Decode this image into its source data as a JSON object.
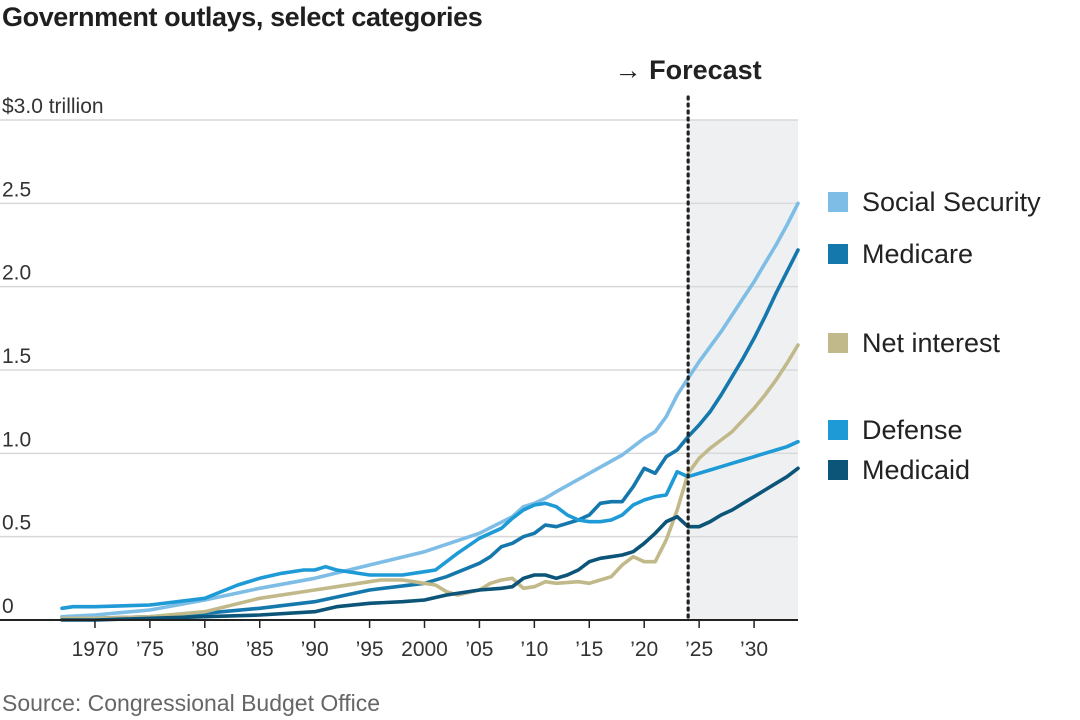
{
  "title": "Government outlays, select categories",
  "source": "Source: Congressional Budget Office",
  "chart_data": {
    "type": "line",
    "title": "Government outlays, select categories",
    "y_unit_label": "$3.0 trillion",
    "ylim": [
      0,
      3.0
    ],
    "xlim": [
      1967,
      2034
    ],
    "y_ticks": [
      {
        "value": 0,
        "label": "0"
      },
      {
        "value": 0.5,
        "label": "0.5"
      },
      {
        "value": 1.0,
        "label": "1.0"
      },
      {
        "value": 1.5,
        "label": "1.5"
      },
      {
        "value": 2.0,
        "label": "2.0"
      },
      {
        "value": 2.5,
        "label": "2.5"
      },
      {
        "value": 3.0,
        "label": "$3.0 trillion"
      }
    ],
    "x_ticks": [
      {
        "value": 1970,
        "label": "1970"
      },
      {
        "value": 1975,
        "label": "’75"
      },
      {
        "value": 1980,
        "label": "’80"
      },
      {
        "value": 1985,
        "label": "’85"
      },
      {
        "value": 1990,
        "label": "’90"
      },
      {
        "value": 1995,
        "label": "’95"
      },
      {
        "value": 2000,
        "label": "2000"
      },
      {
        "value": 2005,
        "label": "’05"
      },
      {
        "value": 2010,
        "label": "’10"
      },
      {
        "value": 2015,
        "label": "’15"
      },
      {
        "value": 2020,
        "label": "’20"
      },
      {
        "value": 2025,
        "label": "’25"
      },
      {
        "value": 2030,
        "label": "’30"
      }
    ],
    "forecast": {
      "label": "→ Forecast",
      "start_year": 2024,
      "end_year": 2034
    },
    "grid": true,
    "legend_position": "right",
    "series": [
      {
        "name": "Social Security",
        "color": "#7dbde6",
        "x": [
          1967,
          1970,
          1975,
          1980,
          1985,
          1990,
          1995,
          2000,
          2005,
          2008,
          2009,
          2010,
          2011,
          2012,
          2015,
          2018,
          2019,
          2020,
          2021,
          2022,
          2023,
          2024,
          2025,
          2026,
          2027,
          2028,
          2029,
          2030,
          2031,
          2032,
          2033,
          2034
        ],
        "y": [
          0.02,
          0.03,
          0.06,
          0.12,
          0.19,
          0.25,
          0.33,
          0.41,
          0.52,
          0.62,
          0.68,
          0.7,
          0.73,
          0.77,
          0.88,
          0.99,
          1.04,
          1.09,
          1.13,
          1.22,
          1.35,
          1.45,
          1.55,
          1.64,
          1.73,
          1.83,
          1.93,
          2.03,
          2.14,
          2.25,
          2.37,
          2.5
        ]
      },
      {
        "name": "Medicare",
        "color": "#1578ad",
        "x": [
          1967,
          1970,
          1975,
          1980,
          1985,
          1990,
          1995,
          2000,
          2002,
          2005,
          2006,
          2007,
          2008,
          2009,
          2010,
          2011,
          2012,
          2014,
          2015,
          2016,
          2017,
          2018,
          2019,
          2020,
          2021,
          2022,
          2023,
          2024,
          2025,
          2026,
          2027,
          2028,
          2029,
          2030,
          2031,
          2032,
          2033,
          2034
        ],
        "y": [
          0.01,
          0.01,
          0.02,
          0.04,
          0.07,
          0.11,
          0.18,
          0.22,
          0.26,
          0.34,
          0.38,
          0.44,
          0.46,
          0.5,
          0.52,
          0.57,
          0.56,
          0.6,
          0.63,
          0.7,
          0.71,
          0.71,
          0.8,
          0.91,
          0.88,
          0.98,
          1.02,
          1.1,
          1.17,
          1.25,
          1.35,
          1.46,
          1.57,
          1.69,
          1.82,
          1.96,
          2.09,
          2.22
        ]
      },
      {
        "name": "Net interest",
        "color": "#c2b98a",
        "x": [
          1967,
          1970,
          1975,
          1980,
          1985,
          1990,
          1992,
          1995,
          1996,
          1997,
          1998,
          1999,
          2000,
          2001,
          2002,
          2003,
          2005,
          2006,
          2007,
          2008,
          2009,
          2010,
          2011,
          2012,
          2014,
          2015,
          2016,
          2017,
          2018,
          2019,
          2020,
          2021,
          2022,
          2023,
          2024,
          2025,
          2026,
          2027,
          2028,
          2029,
          2030,
          2031,
          2032,
          2033,
          2034
        ],
        "y": [
          0.01,
          0.01,
          0.02,
          0.05,
          0.13,
          0.18,
          0.2,
          0.23,
          0.24,
          0.24,
          0.24,
          0.23,
          0.22,
          0.21,
          0.17,
          0.15,
          0.18,
          0.22,
          0.24,
          0.25,
          0.19,
          0.2,
          0.23,
          0.22,
          0.23,
          0.22,
          0.24,
          0.26,
          0.33,
          0.38,
          0.35,
          0.35,
          0.48,
          0.66,
          0.88,
          0.97,
          1.03,
          1.08,
          1.13,
          1.2,
          1.27,
          1.35,
          1.44,
          1.54,
          1.65
        ]
      },
      {
        "name": "Defense",
        "color": "#1e9ad6",
        "x": [
          1967,
          1968,
          1970,
          1975,
          1980,
          1983,
          1985,
          1987,
          1989,
          1990,
          1991,
          1992,
          1995,
          1998,
          2000,
          2001,
          2003,
          2005,
          2006,
          2007,
          2008,
          2009,
          2010,
          2011,
          2012,
          2013,
          2014,
          2015,
          2016,
          2017,
          2018,
          2019,
          2020,
          2021,
          2022,
          2023,
          2024,
          2025,
          2026,
          2027,
          2028,
          2029,
          2030,
          2031,
          2032,
          2033,
          2034
        ],
        "y": [
          0.07,
          0.08,
          0.08,
          0.09,
          0.13,
          0.21,
          0.25,
          0.28,
          0.3,
          0.3,
          0.32,
          0.3,
          0.27,
          0.27,
          0.29,
          0.3,
          0.4,
          0.49,
          0.52,
          0.55,
          0.61,
          0.66,
          0.69,
          0.7,
          0.68,
          0.63,
          0.6,
          0.59,
          0.59,
          0.6,
          0.63,
          0.69,
          0.72,
          0.74,
          0.75,
          0.89,
          0.86,
          0.88,
          0.9,
          0.92,
          0.94,
          0.96,
          0.98,
          1.0,
          1.02,
          1.04,
          1.07
        ]
      },
      {
        "name": "Medicaid",
        "color": "#0c5578",
        "x": [
          1967,
          1970,
          1975,
          1980,
          1985,
          1990,
          1992,
          1995,
          1998,
          2000,
          2002,
          2005,
          2007,
          2008,
          2009,
          2010,
          2011,
          2012,
          2013,
          2014,
          2015,
          2016,
          2017,
          2018,
          2019,
          2020,
          2021,
          2022,
          2023,
          2024,
          2025,
          2026,
          2027,
          2028,
          2029,
          2030,
          2031,
          2032,
          2033,
          2034
        ],
        "y": [
          0.0,
          0.0,
          0.01,
          0.02,
          0.03,
          0.05,
          0.08,
          0.1,
          0.11,
          0.12,
          0.15,
          0.18,
          0.19,
          0.2,
          0.25,
          0.27,
          0.27,
          0.25,
          0.27,
          0.3,
          0.35,
          0.37,
          0.38,
          0.39,
          0.41,
          0.46,
          0.52,
          0.59,
          0.62,
          0.56,
          0.56,
          0.59,
          0.63,
          0.66,
          0.7,
          0.74,
          0.78,
          0.82,
          0.86,
          0.91
        ]
      }
    ],
    "legend": [
      {
        "name": "Social Security",
        "color": "#7dbde6"
      },
      {
        "name": "Medicare",
        "color": "#1578ad"
      },
      {
        "name": "Net interest",
        "color": "#c2b98a"
      },
      {
        "name": "Defense",
        "color": "#1e9ad6"
      },
      {
        "name": "Medicaid",
        "color": "#0c5578"
      }
    ]
  }
}
